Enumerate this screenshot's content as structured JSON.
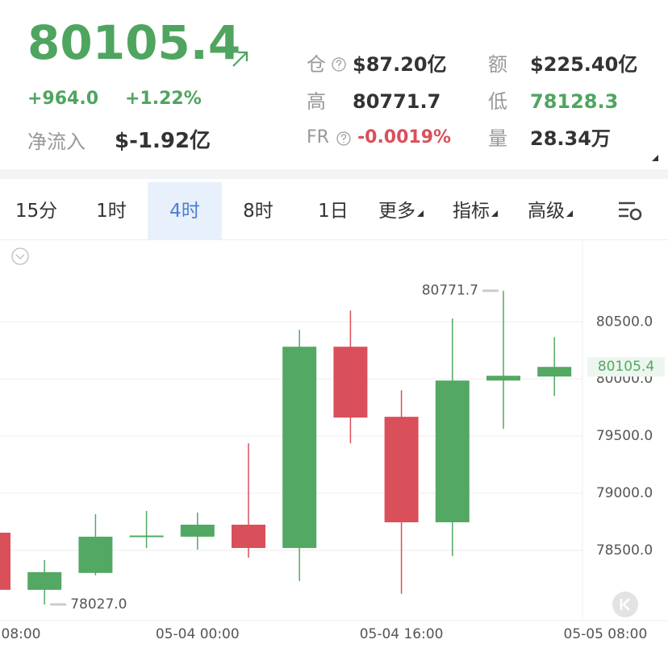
{
  "header": {
    "price": "80105.4",
    "change": "+964.0",
    "change_pct": "+1.22%",
    "net_inflow_label": "净流入",
    "net_inflow": "$-1.92亿",
    "stats": [
      {
        "label": "仓",
        "value": "$87.20亿"
      },
      {
        "label": "额",
        "value": "$225.40亿"
      },
      {
        "label": "高",
        "value": "80771.7"
      },
      {
        "label": "低",
        "value": "78128.3"
      },
      {
        "label": "FR",
        "value": "-0.0019%"
      },
      {
        "label": "量",
        "value": "28.34万"
      }
    ]
  },
  "tabs": [
    "15分",
    "1时",
    "4时",
    "8时",
    "1日",
    "更多",
    "指标",
    "高级"
  ],
  "active_tab": 2,
  "chart_data": {
    "type": "candlestick",
    "categories": [
      "08:00",
      null,
      null,
      null,
      "05-04 00:00",
      null,
      null,
      null,
      "05-04 16:00",
      null,
      null,
      null,
      "05-05 08:00"
    ],
    "open": [
      78655,
      78155,
      78303,
      78620,
      78620,
      78725,
      78521,
      80282,
      79669,
      78746,
      79986,
      80021,
      null
    ],
    "high": [
      78660,
      78415,
      78817,
      78845,
      78831,
      79437,
      80430,
      80599,
      79901,
      80528,
      80771.7,
      80366,
      null
    ],
    "low": [
      78150,
      78027.0,
      78282,
      78521,
      78507,
      78437,
      78232,
      79437,
      78120,
      78451,
      79563,
      79852,
      null
    ],
    "close": [
      78155,
      78310,
      78620,
      78630,
      78725,
      78521,
      80282,
      79662,
      78746,
      79986,
      80028,
      80105.4,
      null
    ],
    "up_color": "#53a863",
    "down_color": "#d9505a",
    "ylim": [
      77900,
      81200
    ],
    "yticks": [
      {
        "value": 78500,
        "label": "78500.0"
      },
      {
        "value": 79000,
        "label": "79000.0"
      },
      {
        "value": 79500,
        "label": "79500.0"
      },
      {
        "value": 80000,
        "label": "80000.0"
      },
      {
        "value": 80500,
        "label": "80500.0"
      }
    ],
    "grid": true,
    "high_label": "80771.7",
    "low_label": "78027.0",
    "last_label": "80105.4"
  }
}
